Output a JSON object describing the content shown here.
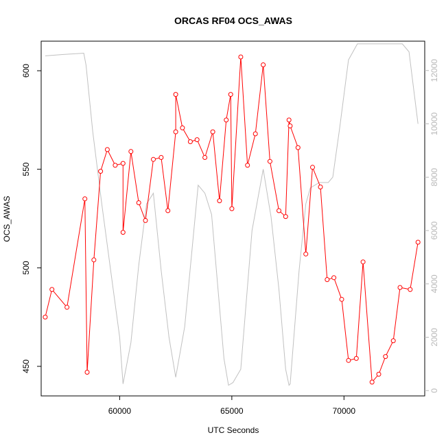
{
  "chart_data": {
    "type": "line",
    "title": "ORCAS RF04 OCS_AWAS",
    "xlabel": "UTC Seconds",
    "ylabel": "OCS_AWAS",
    "xlim": [
      56500,
      73600
    ],
    "ylim": [
      435,
      615
    ],
    "y2lim": [
      -200,
      13100
    ],
    "x_ticks": [
      60000,
      65000,
      70000
    ],
    "x_tick_labels": [
      "60000",
      "65000",
      "70000"
    ],
    "y_ticks": [
      450,
      500,
      550,
      600
    ],
    "y_tick_labels": [
      "450",
      "500",
      "550",
      "600"
    ],
    "y2_ticks": [
      0,
      2000,
      4000,
      6000,
      8000,
      10000,
      12000
    ],
    "y2_tick_labels": [
      "0",
      "2000",
      "4000",
      "6000",
      "8000",
      "10000",
      "12000"
    ],
    "grid": false,
    "series": [
      {
        "axis": "left",
        "color": "#ff0000",
        "marker": "open-circle",
        "x": [
          56680,
          56980,
          57650,
          58450,
          58550,
          58850,
          59150,
          59450,
          59800,
          60150,
          60150,
          60500,
          60850,
          61150,
          61500,
          61850,
          62150,
          62500,
          62500,
          62800,
          63150,
          63450,
          63800,
          64150,
          64450,
          64750,
          64950,
          65000,
          65400,
          65700,
          66050,
          66400,
          66700,
          67100,
          67400,
          67550,
          67600,
          67950,
          68300,
          68600,
          68950,
          69250,
          69550,
          69900,
          70200,
          70550,
          70850,
          71250,
          71550,
          71850,
          72200,
          72500,
          72950,
          73300
        ],
        "y": [
          475,
          489,
          480,
          535,
          447,
          504,
          549,
          560,
          552,
          553,
          518,
          559,
          533,
          524,
          555,
          556,
          529,
          569,
          588,
          571,
          564,
          565,
          556,
          569,
          534,
          575,
          588,
          530,
          607,
          552,
          568,
          603,
          554,
          529,
          526,
          575,
          572,
          561,
          507,
          551,
          541,
          494,
          495,
          484,
          453,
          454,
          503,
          442,
          446,
          455,
          463,
          490,
          489,
          513
        ]
      },
      {
        "axis": "right",
        "color": "#c0c0c0",
        "marker": "none",
        "x": [
          56680,
          57500,
          58400,
          58500,
          58800,
          59200,
          59600,
          60000,
          60150,
          60500,
          60850,
          61200,
          61500,
          61850,
          62200,
          62500,
          62900,
          63500,
          63800,
          64100,
          64650,
          64850,
          65050,
          65400,
          65900,
          66400,
          66750,
          67100,
          67400,
          67550,
          67600,
          68000,
          68300,
          68500,
          68900,
          69300,
          69500,
          69800,
          70200,
          70600,
          71000,
          72400,
          72600,
          72900,
          73300
        ],
        "y": [
          12550,
          12600,
          12650,
          12200,
          9700,
          7000,
          4500,
          2000,
          250,
          1800,
          4700,
          7000,
          7400,
          4500,
          2000,
          500,
          2400,
          7700,
          7400,
          6600,
          1200,
          200,
          300,
          800,
          6000,
          8300,
          6500,
          3800,
          800,
          200,
          250,
          4500,
          7000,
          7600,
          7800,
          7800,
          8000,
          9800,
          12400,
          13000,
          13000,
          13000,
          13000,
          12700,
          10000
        ]
      }
    ]
  }
}
